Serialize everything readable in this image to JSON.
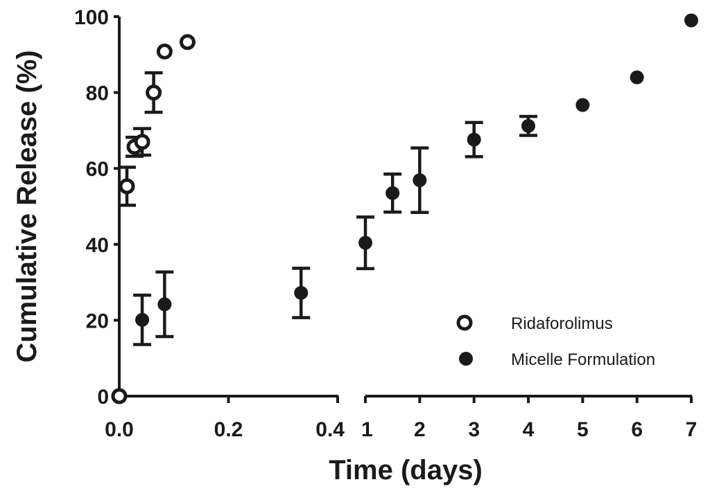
{
  "chart_data": {
    "type": "scatter",
    "xlabel": "Time (days)",
    "ylabel": "Cumulative Release (%)",
    "ylim": [
      0,
      100
    ],
    "y_ticks": [
      "0",
      "20",
      "40",
      "60",
      "80",
      "100"
    ],
    "x_axis": {
      "broken": true,
      "segment1": {
        "range": [
          0.0,
          0.4
        ],
        "ticks": [
          "0.0",
          "0.2",
          "0.4"
        ]
      },
      "segment2": {
        "range": [
          1,
          7
        ],
        "ticks": [
          "1",
          "2",
          "3",
          "4",
          "5",
          "6",
          "7"
        ]
      }
    },
    "series": [
      {
        "name": "Ridaforolimus",
        "marker": "open-circle",
        "points": [
          {
            "x": 0.0,
            "y": 0,
            "err": 0
          },
          {
            "x": 0.014,
            "y": 55.3,
            "err": 5.0
          },
          {
            "x": 0.028,
            "y": 65.7,
            "err": 2.5
          },
          {
            "x": 0.042,
            "y": 67.0,
            "err": 3.5
          },
          {
            "x": 0.063,
            "y": 80.0,
            "err": 5.2
          },
          {
            "x": 0.083,
            "y": 90.8,
            "err": 0
          },
          {
            "x": 0.125,
            "y": 93.3,
            "err": 0
          }
        ]
      },
      {
        "name": "Micelle Formulation",
        "marker": "filled-circle",
        "points": [
          {
            "x": 0.0,
            "y": 0,
            "err": 0
          },
          {
            "x": 0.042,
            "y": 20.1,
            "err": 6.5
          },
          {
            "x": 0.083,
            "y": 24.2,
            "err": 8.5
          },
          {
            "x": 0.333,
            "y": 27.2,
            "err": 6.5
          },
          {
            "x": 1.0,
            "y": 40.4,
            "err": 6.8
          },
          {
            "x": 1.5,
            "y": 53.5,
            "err": 5.0
          },
          {
            "x": 2.0,
            "y": 56.9,
            "err": 8.5
          },
          {
            "x": 3.0,
            "y": 67.6,
            "err": 4.5
          },
          {
            "x": 4.0,
            "y": 71.2,
            "err": 2.5
          },
          {
            "x": 5.0,
            "y": 76.7,
            "err": 0
          },
          {
            "x": 6.0,
            "y": 84.0,
            "err": 0
          },
          {
            "x": 7.0,
            "y": 99.0,
            "err": 0
          }
        ]
      }
    ],
    "legend": {
      "position": "bottom-right"
    }
  }
}
